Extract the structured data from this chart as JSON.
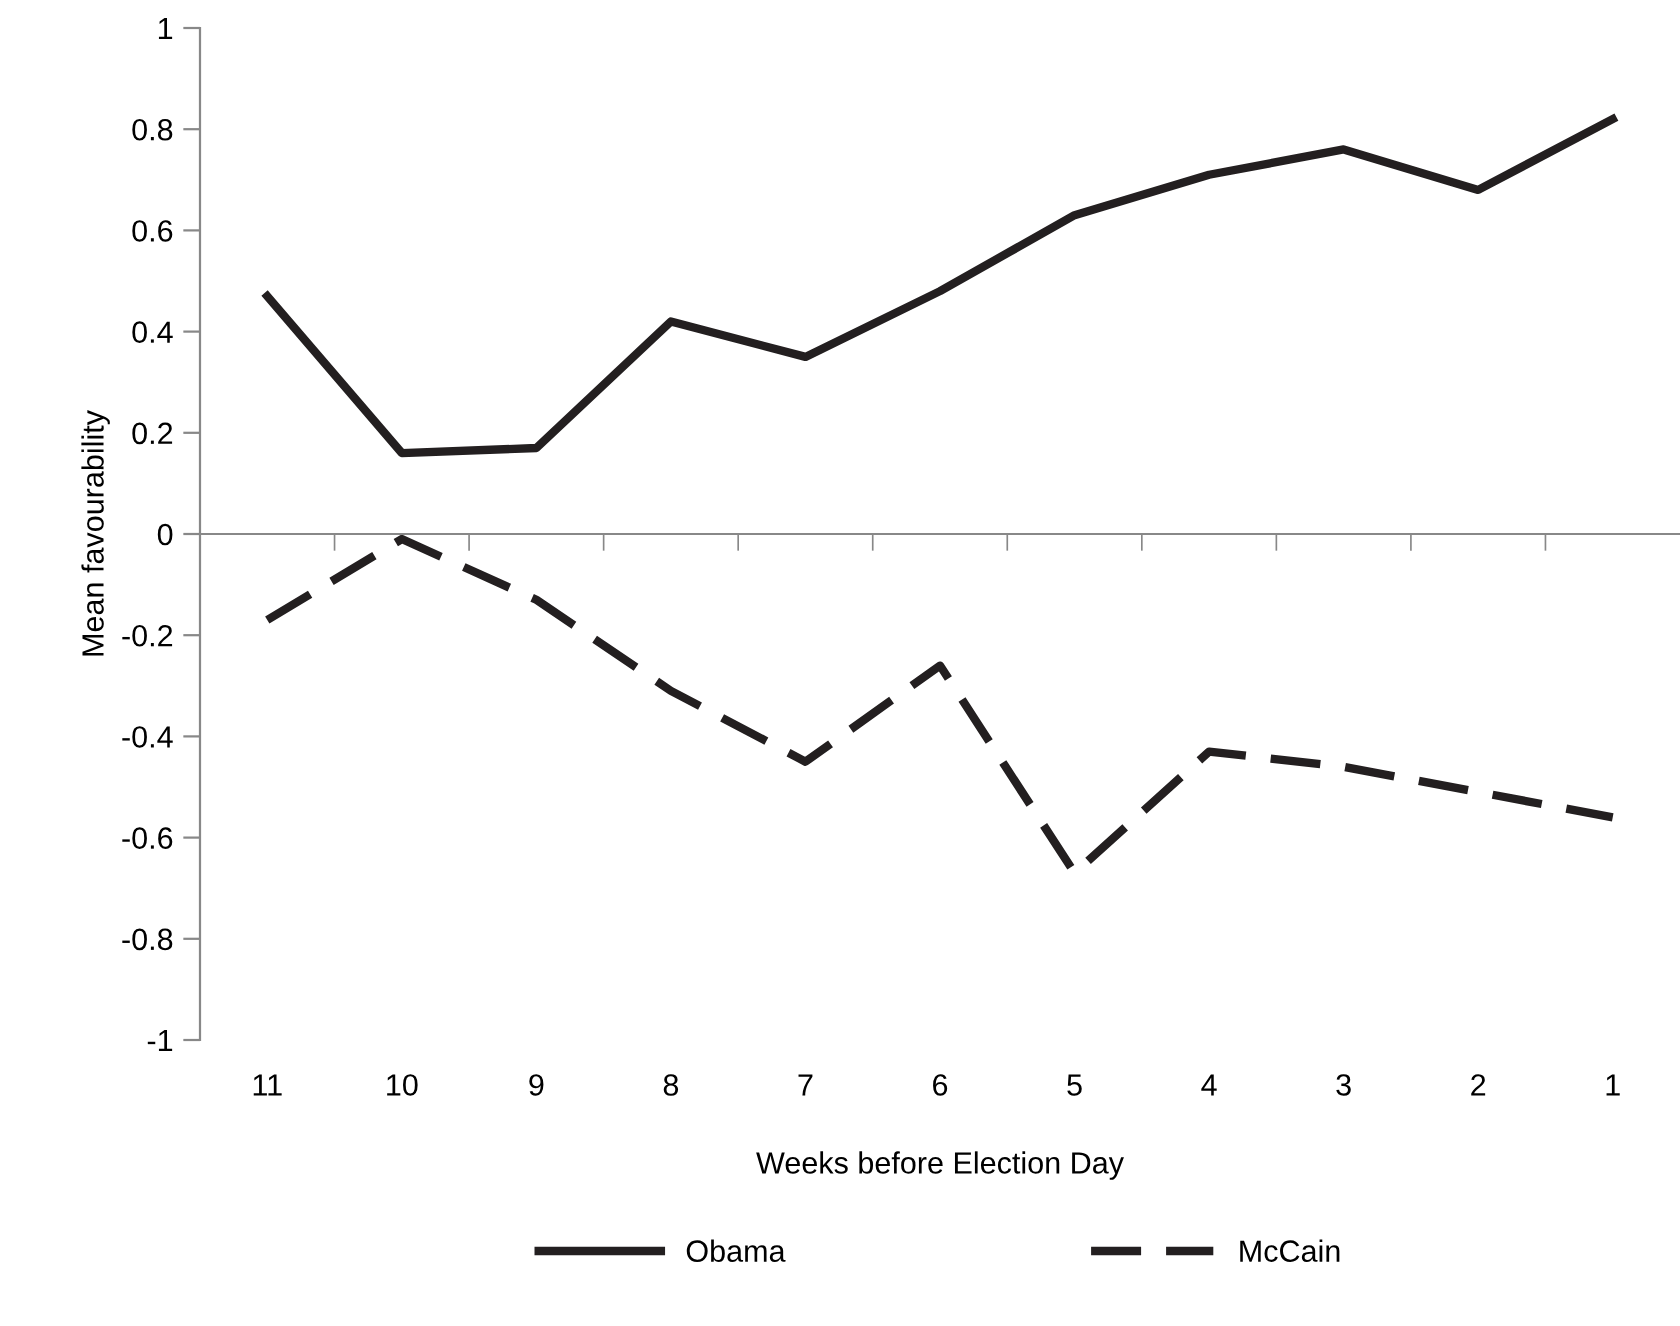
{
  "chart_data": {
    "type": "line",
    "xlabel": "Weeks before Election Day",
    "ylabel": "Mean favourability",
    "categories": [
      "11",
      "10",
      "9",
      "8",
      "7",
      "6",
      "5",
      "4",
      "3",
      "2",
      "1"
    ],
    "series": [
      {
        "name": "Obama",
        "color": "#231f20",
        "line_style": "solid",
        "values": [
          0.47,
          0.16,
          0.17,
          0.42,
          0.35,
          0.48,
          0.63,
          0.71,
          0.76,
          0.68,
          0.82
        ]
      },
      {
        "name": "McCain",
        "color": "#231f20",
        "line_style": "dashed",
        "values": [
          -0.17,
          -0.01,
          -0.13,
          -0.31,
          -0.45,
          -0.26,
          -0.67,
          -0.43,
          -0.46,
          -0.51,
          -0.56
        ]
      }
    ],
    "ylim": [
      -1,
      1
    ],
    "yticks": [
      -1,
      -0.8,
      -0.6,
      -0.4,
      -0.2,
      0,
      0.2,
      0.4,
      0.6,
      0.8,
      1
    ],
    "legend": "bottom",
    "marker": "none"
  }
}
